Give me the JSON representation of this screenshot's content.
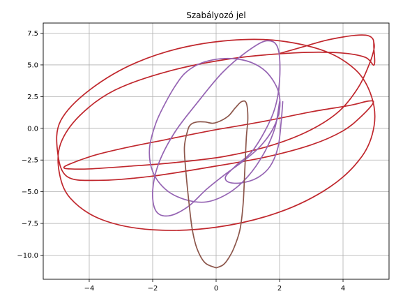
{
  "chart_data": {
    "type": "line",
    "title": "Szabályozó jel",
    "xlabel": "",
    "ylabel": "",
    "xlim": [
      -5.45,
      5.45
    ],
    "ylim": [
      -11.9,
      8.3
    ],
    "xticks": [
      -4,
      -2,
      0,
      2,
      4
    ],
    "xtick_labels": [
      "−4",
      "−2",
      "0",
      "2",
      "4"
    ],
    "yticks": [
      -10.0,
      -7.5,
      -5.0,
      -2.5,
      0.0,
      2.5,
      5.0,
      7.5
    ],
    "ytick_labels": [
      "−10.0",
      "−7.5",
      "−5.0",
      "−2.5",
      "0.0",
      "2.5",
      "5.0",
      "7.5"
    ],
    "grid": true,
    "legend": "none",
    "series": [
      {
        "color": "#c0272d",
        "x": [
          2.0,
          2.7,
          3.4,
          4.0,
          4.5,
          4.8,
          4.95,
          4.97,
          4.98,
          4.7,
          3.9,
          2.5,
          0.5,
          -1.5,
          -3.2,
          -4.3,
          -4.9,
          -4.95,
          -4.6,
          -3.6,
          -2.0,
          0.0,
          2.0,
          3.6,
          4.6,
          4.98,
          4.9,
          4.4,
          3.3,
          1.5,
          -0.6,
          -2.5,
          -4.0,
          -4.9,
          -5.0,
          -4.7,
          -3.7,
          -2.1,
          -0.3,
          1.5,
          3.0,
          4.0,
          4.6,
          4.95,
          4.8,
          4.2,
          3.0,
          1.4,
          -0.2,
          -1.6,
          -2.8,
          -3.8,
          -4.6,
          -4.8,
          -4.6,
          -4.0,
          -2.8,
          -1.3,
          0.3,
          1.8,
          3.0,
          3.9,
          4.5,
          4.85,
          4.98,
          4.97
        ],
        "y": [
          5.9,
          6.4,
          6.9,
          7.2,
          7.35,
          7.3,
          7.0,
          6.4,
          5.0,
          5.6,
          5.95,
          5.95,
          5.5,
          4.5,
          3.0,
          1.0,
          -1.2,
          -3.4,
          -5.5,
          -7.2,
          -8.0,
          -7.8,
          -6.6,
          -4.6,
          -2.2,
          0.2,
          2.5,
          4.6,
          6.2,
          7.0,
          6.6,
          5.2,
          3.0,
          0.6,
          -1.8,
          -3.8,
          -4.1,
          -3.8,
          -3.1,
          -2.3,
          -1.3,
          -0.2,
          1.0,
          2.0,
          2.15,
          1.8,
          1.3,
          0.5,
          -0.2,
          -0.9,
          -1.5,
          -2.1,
          -2.8,
          -3.1,
          -3.2,
          -3.2,
          -3.0,
          -2.7,
          -2.2,
          -1.3,
          -0.1,
          1.4,
          3.3,
          5.2,
          6.3,
          6.8
        ]
      },
      {
        "color": "#9564b3",
        "x": [
          2.1,
          2.05,
          1.95,
          1.7,
          1.3,
          0.8,
          0.4,
          0.3,
          0.6,
          1.2,
          1.8,
          2.0,
          1.95,
          1.6,
          1.0,
          0.2,
          -0.6,
          -1.3,
          -1.8,
          -2.0,
          -1.9,
          -1.5,
          -0.9,
          -0.3,
          0.3,
          0.9,
          1.4,
          1.8,
          2.0,
          1.95,
          1.6,
          1.1,
          0.5,
          -0.1,
          -0.6,
          -1.0,
          -1.3,
          -1.6,
          -1.9,
          -2.1,
          -2.0,
          -1.6,
          -1.0,
          -0.3,
          0.4,
          1.0,
          1.5,
          1.85,
          2.0
        ],
        "y": [
          2.1,
          0.5,
          -1.5,
          -3.0,
          -3.9,
          -4.3,
          -4.25,
          -3.8,
          -3.0,
          -1.6,
          1.2,
          3.8,
          6.3,
          6.9,
          6.1,
          4.4,
          2.0,
          -0.3,
          -2.7,
          -4.9,
          -6.5,
          -6.9,
          -6.2,
          -4.8,
          -3.6,
          -2.5,
          -1.4,
          0.0,
          1.5,
          3.0,
          4.4,
          5.2,
          5.5,
          5.4,
          5.0,
          4.3,
          3.3,
          2.0,
          0.4,
          -1.6,
          -3.4,
          -4.8,
          -5.6,
          -5.8,
          -5.1,
          -3.8,
          -2.0,
          0.0,
          2.1
        ]
      },
      {
        "color": "#8c564b",
        "x": [
          0.0,
          -0.35,
          -0.6,
          -0.75,
          -0.85,
          -0.95,
          -1.0,
          -0.9,
          -0.8,
          -0.6,
          -0.35,
          -0.1,
          0.15,
          0.4,
          0.6,
          0.8,
          0.95,
          1.0,
          0.95,
          0.9,
          0.85,
          0.75,
          0.55,
          0.35,
          0.2,
          0.0
        ],
        "y": [
          -11.0,
          -10.6,
          -9.5,
          -8.0,
          -6.0,
          -3.5,
          -1.5,
          -0.2,
          0.3,
          0.5,
          0.5,
          0.4,
          0.6,
          1.0,
          1.6,
          2.1,
          2.0,
          0.8,
          -0.8,
          -3.5,
          -6.0,
          -8.0,
          -9.5,
          -10.4,
          -10.8,
          -11.0
        ]
      }
    ]
  }
}
